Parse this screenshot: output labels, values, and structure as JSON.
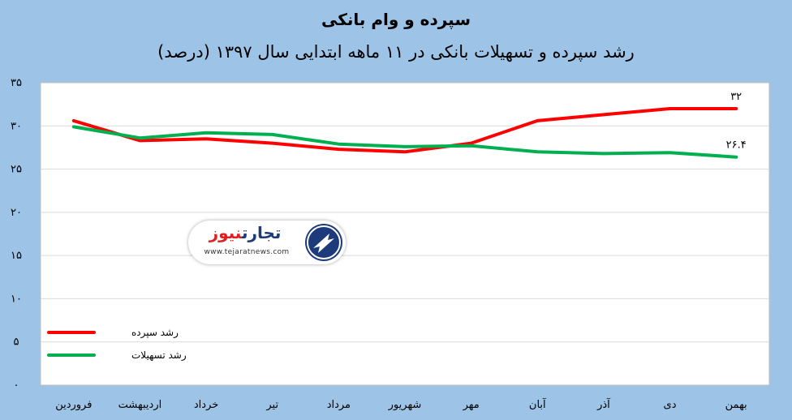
{
  "chart_data": {
    "type": "line",
    "title": "سپرده و وام بانکی",
    "subtitle": "رشد سپرده و تسهیلات بانکی در ۱۱ ماهه ابتدایی سال ۱۳۹۷ (درصد)",
    "categories": [
      "فروردین",
      "اردیبهشت",
      "خرداد",
      "تیر",
      "مرداد",
      "شهریور",
      "مهر",
      "آبان",
      "آذر",
      "دی",
      "بهمن"
    ],
    "ylim": [
      0,
      35
    ],
    "yticks": [
      "۰",
      "۵",
      "۱۰",
      "۱۵",
      "۲۰",
      "۲۵",
      "۳۰",
      "۳۵"
    ],
    "ytick_values": [
      0,
      5,
      10,
      15,
      20,
      25,
      30,
      35
    ],
    "grid": true,
    "legend_position": "bottom-left",
    "series": [
      {
        "name": "رشد سپرده",
        "color": "#ff0000",
        "values": [
          30.6,
          28.3,
          28.5,
          28.0,
          27.3,
          27.0,
          28.0,
          30.6,
          31.3,
          32.0,
          32.0
        ],
        "end_label": "۳۲"
      },
      {
        "name": "رشد تسهیلات",
        "color": "#00b050",
        "values": [
          29.9,
          28.6,
          29.2,
          29.0,
          27.9,
          27.6,
          27.7,
          27.0,
          26.8,
          26.9,
          26.4
        ],
        "end_label": "۲۶.۴"
      }
    ]
  },
  "logo": {
    "name_main": "تجارت",
    "name_accent": "نیوز",
    "url": "www.tejaratnews.com"
  }
}
